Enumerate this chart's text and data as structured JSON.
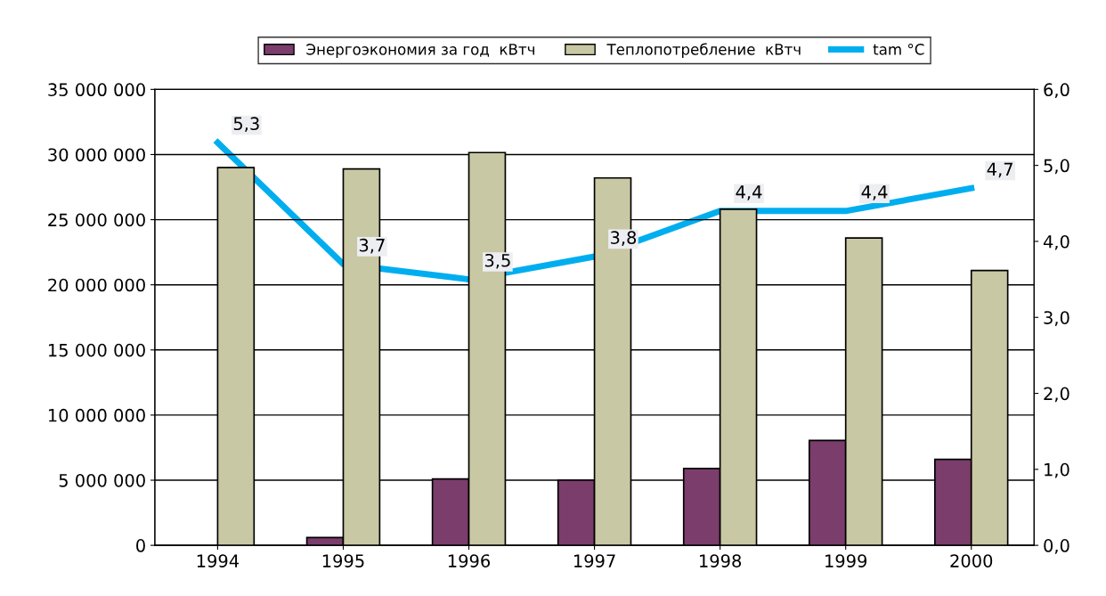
{
  "chart_data": {
    "type": "bar",
    "categories": [
      "1994",
      "1995",
      "1996",
      "1997",
      "1998",
      "1999",
      "2000"
    ],
    "series": [
      {
        "name": "Энергоэкономия за год  кВтч",
        "color": "#7a3d6c",
        "values": [
          null,
          600000,
          5100000,
          5000000,
          5900000,
          8050000,
          6600000
        ]
      },
      {
        "name": "Теплопотребление  кВтч",
        "color": "#c9c8a4",
        "values": [
          29000000,
          28900000,
          30150000,
          28200000,
          25800000,
          23600000,
          21100000
        ]
      },
      {
        "name": "tam °C",
        "type": "line",
        "axis": "y2",
        "color": "#00aeef",
        "values": [
          5.3,
          3.7,
          3.5,
          3.8,
          4.4,
          4.4,
          4.7
        ],
        "value_labels": [
          "5,3",
          "3,7",
          "3,5",
          "3,8",
          "4,4",
          "4,4",
          "4,7"
        ]
      }
    ],
    "ylim": [
      0,
      35000000
    ],
    "yticks": [
      {
        "value": 0,
        "label": "0"
      },
      {
        "value": 5000000,
        "label": "5 000 000"
      },
      {
        "value": 10000000,
        "label": "10 000 000"
      },
      {
        "value": 15000000,
        "label": "15 000 000"
      },
      {
        "value": 20000000,
        "label": "20 000 000"
      },
      {
        "value": 25000000,
        "label": "25 000 000"
      },
      {
        "value": 30000000,
        "label": "30 000 000"
      },
      {
        "value": 35000000,
        "label": "35 000 000"
      }
    ],
    "y2lim": [
      0,
      6
    ],
    "y2ticks": [
      {
        "value": 0,
        "label": "0,0"
      },
      {
        "value": 1,
        "label": "1,0"
      },
      {
        "value": 2,
        "label": "2,0"
      },
      {
        "value": 3,
        "label": "3,0"
      },
      {
        "value": 4,
        "label": "4,0"
      },
      {
        "value": 5,
        "label": "5,0"
      },
      {
        "value": 6,
        "label": "6,0"
      }
    ],
    "grid": "y",
    "legend": "top",
    "marker": "none",
    "line_style": "solid"
  }
}
